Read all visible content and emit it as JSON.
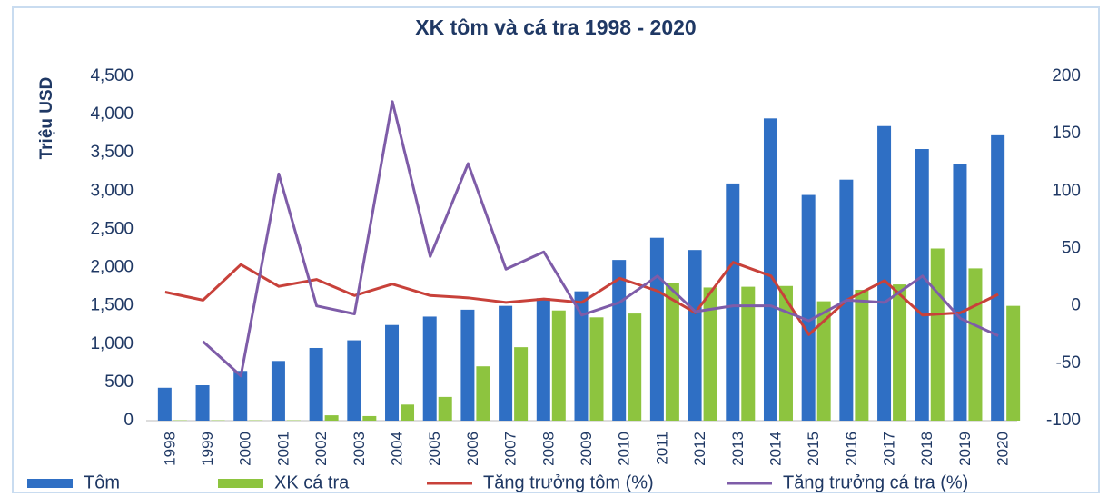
{
  "chart_data": {
    "type": "bar-line",
    "title": "XK tôm và cá tra 1998 - 2020",
    "ylabel": "Triệu USD",
    "categories": [
      "1998",
      "1999",
      "2000",
      "2001",
      "2002",
      "2003",
      "2004",
      "2005",
      "2006",
      "2007",
      "2008",
      "2009",
      "2010",
      "2011",
      "2012",
      "2013",
      "2014",
      "2015",
      "2016",
      "2017",
      "2018",
      "2019",
      "2020"
    ],
    "series": [
      {
        "name": "Tôm",
        "type": "bar",
        "color": "#2f6fc4",
        "values": [
          430,
          463,
          650,
          780,
          950,
          1050,
          1250,
          1360,
          1450,
          1500,
          1600,
          1690,
          2100,
          2390,
          2230,
          3100,
          3950,
          2950,
          3150,
          3850,
          3550,
          3360,
          3730
        ]
      },
      {
        "name": "XK cá tra",
        "type": "bar",
        "color": "#8dc43f",
        "values": [
          5,
          5,
          5,
          5,
          70,
          60,
          210,
          310,
          710,
          960,
          1440,
          1350,
          1400,
          1800,
          1740,
          1750,
          1760,
          1560,
          1710,
          1780,
          2250,
          1990,
          1500
        ]
      },
      {
        "name": "Tăng trưởng tôm (%)",
        "type": "line",
        "axis": "y2",
        "color": "#c8413a",
        "values": [
          12,
          5,
          36,
          17,
          23,
          9,
          19,
          9,
          7,
          3,
          6,
          3,
          24,
          13,
          -6,
          38,
          26,
          -25,
          5,
          22,
          -8,
          -6,
          10
        ]
      },
      {
        "name": "Tăng trưởng cá tra (%)",
        "type": "line",
        "axis": "y2",
        "color": "#7e5ca8",
        "values": [
          null,
          -31,
          -61,
          115,
          0,
          -7,
          178,
          43,
          124,
          32,
          47,
          -8,
          3,
          26,
          -5,
          0,
          0,
          -13,
          5,
          3,
          26,
          -11,
          -26
        ]
      }
    ],
    "ylim": [
      0,
      4500
    ],
    "yticks": [
      0,
      500,
      {
        "value": 1000,
        "label": "1,000"
      },
      {
        "value": 1500,
        "label": "1,500"
      },
      {
        "value": 2000,
        "label": "2,000"
      },
      {
        "value": 2500,
        "label": "2,500"
      },
      {
        "value": 3000,
        "label": "3,000"
      },
      {
        "value": 3500,
        "label": "3,500"
      },
      {
        "value": 4000,
        "label": "4,000"
      },
      {
        "value": 4500,
        "label": "4,500"
      }
    ],
    "y2lim": [
      -100,
      200
    ],
    "y2ticks": [
      -100,
      -50,
      0,
      50,
      100,
      150,
      200
    ],
    "grid": false,
    "legend": "bottom"
  }
}
